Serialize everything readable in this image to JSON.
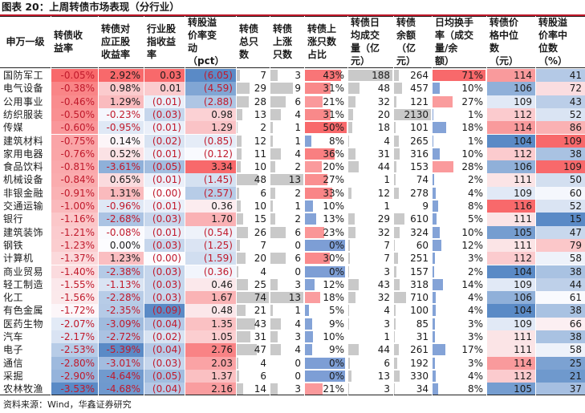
{
  "title": "图表 20：上周转债市场表现（分行业）",
  "headers": [
    "申万一级",
    "转债收\n益率",
    "转债对\n应正股\n收益率",
    "行业股\n指收益\n率",
    "转股溢\n价率变\n动\n（pct）",
    "转债\n总只\n数",
    "转债\n上涨\n只数",
    "转债上\n涨只数\n占比",
    "转债日\n均成交\n量（亿\n元）",
    "转债\n余额\n（亿\n元）",
    "日均换手\n率（成交\n量/余\n额）",
    "转债价\n格中位\n数\n（元）",
    "转股溢\n价率中\n位数\n（%）"
  ],
  "rows": [
    [
      "国防军工",
      "-0.05%",
      "2.92%",
      "0.03",
      "(6.05)",
      "7",
      "3",
      "43%",
      "188",
      "264",
      "71%",
      "114",
      "41"
    ],
    [
      "电气设备",
      "-0.38%",
      "0.98%",
      "0.01",
      "(4.59)",
      "29",
      "9",
      "31%",
      "48",
      "457",
      "10%",
      "106",
      "72"
    ],
    [
      "公用事业",
      "-0.46%",
      "1.29%",
      "(0.01)",
      "(2.88)",
      "28",
      "6",
      "21%",
      "32",
      "121",
      "27%",
      "109",
      "43"
    ],
    [
      "纺织服装",
      "-0.50%",
      "-0.23%",
      "(0.03)",
      "0.98",
      "13",
      "4",
      "31%",
      "20",
      "2130",
      "1%",
      "112",
      "52"
    ],
    [
      "传媒",
      "-0.60%",
      "-0.95%",
      "(0.01)",
      "1.29",
      "2",
      "1",
      "50%",
      "18",
      "101",
      "18%",
      "114",
      "86"
    ],
    [
      "建筑材料",
      "-0.75%",
      "0.14%",
      "(0.02)",
      "(0.85)",
      "12",
      "1",
      "8%",
      "4",
      "265",
      "1%",
      "104",
      "109"
    ],
    [
      "家用电器",
      "-0.76%",
      "0.52%",
      "(0.01)",
      "(0.12)",
      "11",
      "4",
      "36%",
      "31",
      "316",
      "10%",
      "112",
      "38"
    ],
    [
      "食品饮料",
      "-0.81%",
      "-3.61%",
      "(0.05)",
      "3.34",
      "10",
      "2",
      "20%",
      "44",
      "153",
      "28%",
      "106",
      "109"
    ],
    [
      "机械设备",
      "-0.84%",
      "0.65%",
      "(0.01)",
      "(1.45)",
      "48",
      "13",
      "27%",
      "1",
      "74",
      "2%",
      "111",
      "50"
    ],
    [
      "非银金融",
      "-0.91%",
      "1.31%",
      "(0.00)",
      "(2.57)",
      "6",
      "2",
      "33%",
      "12",
      "278",
      "4%",
      "109",
      "60"
    ],
    [
      "交通运输",
      "-1.00%",
      "-0.96%",
      "(0.01)",
      "0.36",
      "10",
      "1",
      "10%",
      "1",
      "9",
      "8%",
      "116",
      "52"
    ],
    [
      "银行",
      "-1.16%",
      "-2.68%",
      "(0.03)",
      "1.70",
      "15",
      "2",
      "13%",
      "29",
      "610",
      "5%",
      "111",
      "15"
    ],
    [
      "建筑装饰",
      "-1.21%",
      "-0.08%",
      "(0.01)",
      "(0.54)",
      "26",
      "6",
      "23%",
      "32",
      "324",
      "10%",
      "105",
      "47"
    ],
    [
      "钢铁",
      "-1.23%",
      "0.00%",
      "(0.03)",
      "(1.25)",
      "7",
      "0",
      "0%",
      "7",
      "60",
      "12%",
      "111",
      "79"
    ],
    [
      "计算机",
      "-1.37%",
      "1.23%",
      "(0.00)",
      "(1.59)",
      "20",
      "6",
      "30%",
      "7",
      "251",
      "3%",
      "112",
      "58"
    ],
    [
      "商业贸易",
      "-1.40%",
      "-2.38%",
      "(0.03)",
      "(0.36)",
      "4",
      "0",
      "0%",
      "3",
      "157",
      "2%",
      "104",
      "38"
    ],
    [
      "轻工制造",
      "-1.55%",
      "-1.13%",
      "(0.03)",
      "0.46",
      "25",
      "3",
      "12%",
      "43",
      "318",
      "14%",
      "109",
      "44"
    ],
    [
      "化工",
      "-1.56%",
      "-2.28%",
      "(0.03)",
      "1.67",
      "74",
      "13",
      "18%",
      "32",
      "710",
      "4%",
      "106",
      "61"
    ],
    [
      "有色金属",
      "-1.72%",
      "-2.35%",
      "(0.09)",
      "0.48",
      "21",
      "1",
      "5%",
      "4",
      "100",
      "4%",
      "104",
      "38"
    ],
    [
      "医药生物",
      "-2.07%",
      "-3.09%",
      "(0.04)",
      "1.35",
      "43",
      "4",
      "9%",
      "3",
      "85",
      "3%",
      "109",
      "66"
    ],
    [
      "汽车",
      "-2.17%",
      "-2.72%",
      "(0.02)",
      "1.05",
      "31",
      "3",
      "10%",
      "1",
      "31",
      "3%",
      "111",
      "38"
    ],
    [
      "电子",
      "-2.53%",
      "-5.39%",
      "(0.04)",
      "2.76",
      "47",
      "4",
      "9%",
      "44",
      "261",
      "17%",
      "111",
      "58"
    ],
    [
      "通信",
      "-2.80%",
      "-3.01%",
      "(0.03)",
      "2.03",
      "4",
      "0",
      "0%",
      "6",
      "192",
      "3%",
      "114",
      "25"
    ],
    [
      "采掘",
      "-2.90%",
      "-4.64%",
      "(0.05)",
      "1.37",
      "6",
      "0",
      "0%",
      "13",
      "330",
      "4%",
      "112",
      "21"
    ],
    [
      "农林牧渔",
      "-3.53%",
      "-4.68%",
      "(0.04)",
      "2.16",
      "14",
      "3",
      "21%",
      "3",
      "34",
      "8%",
      "105",
      "37"
    ]
  ],
  "source": "资料来源：Wind，华鑫证券研究",
  "colors": {
    "accent_red": "#c0192b",
    "heat_red": "#f8696b",
    "heat_white": "#fcfcff",
    "heat_blue": "#5a8ac6",
    "bar_gray": "#c9c9c9",
    "bar_blue": "#6f93d0",
    "bar_red": "#f8696b"
  }
}
